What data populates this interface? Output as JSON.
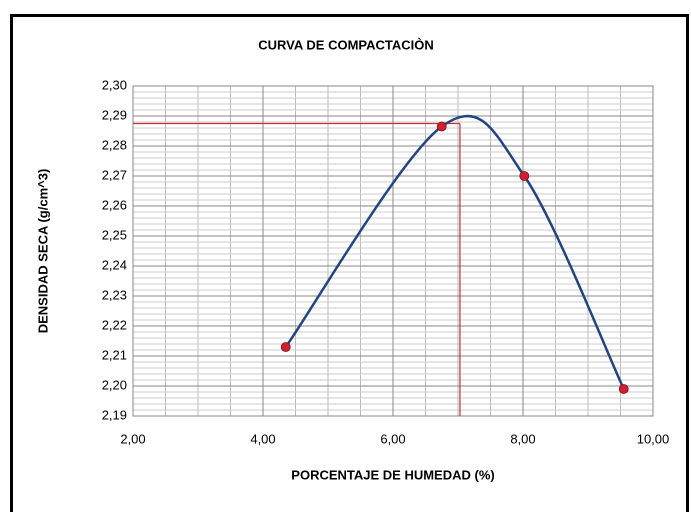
{
  "chart_data": {
    "type": "scatter",
    "title": "CURVA DE COMPACTACIÒN",
    "xlabel": "PORCENTAJE  DE HUMEDAD  (%)",
    "ylabel": "DENSIDAD SECA  (g/cm^3)",
    "series": [
      {
        "x": [
          4.35,
          6.75,
          8.02,
          9.55
        ],
        "y": [
          2.213,
          2.2865,
          2.27,
          2.199
        ],
        "color": "#23457f",
        "marker_color": "#d0202e",
        "smooth": true
      }
    ],
    "xlim": [
      2,
      10
    ],
    "ylim": [
      2.19,
      2.3
    ],
    "xticks": [
      {
        "value": 2,
        "label": "2,00"
      },
      {
        "value": 4,
        "label": "4,00"
      },
      {
        "value": 6,
        "label": "6,00"
      },
      {
        "value": 8,
        "label": "8,00"
      },
      {
        "value": 10,
        "label": "10,00"
      }
    ],
    "yticks": [
      {
        "value": 2.19,
        "label": "2,19"
      },
      {
        "value": 2.2,
        "label": "2,20"
      },
      {
        "value": 2.21,
        "label": "2,21"
      },
      {
        "value": 2.22,
        "label": "2,22"
      },
      {
        "value": 2.23,
        "label": "2,23"
      },
      {
        "value": 2.24,
        "label": "2,24"
      },
      {
        "value": 2.25,
        "label": "2,25"
      },
      {
        "value": 2.26,
        "label": "2,26"
      },
      {
        "value": 2.27,
        "label": "2,27"
      },
      {
        "value": 2.28,
        "label": "2,28"
      },
      {
        "value": 2.29,
        "label": "2,29"
      },
      {
        "value": 2.3,
        "label": "2,30"
      }
    ],
    "grid": true,
    "minor_grid": {
      "x_step": 0.5,
      "y_step": 0.002
    },
    "reference": {
      "x": 7.03,
      "y": 2.2875,
      "color": "#c8303a"
    }
  }
}
